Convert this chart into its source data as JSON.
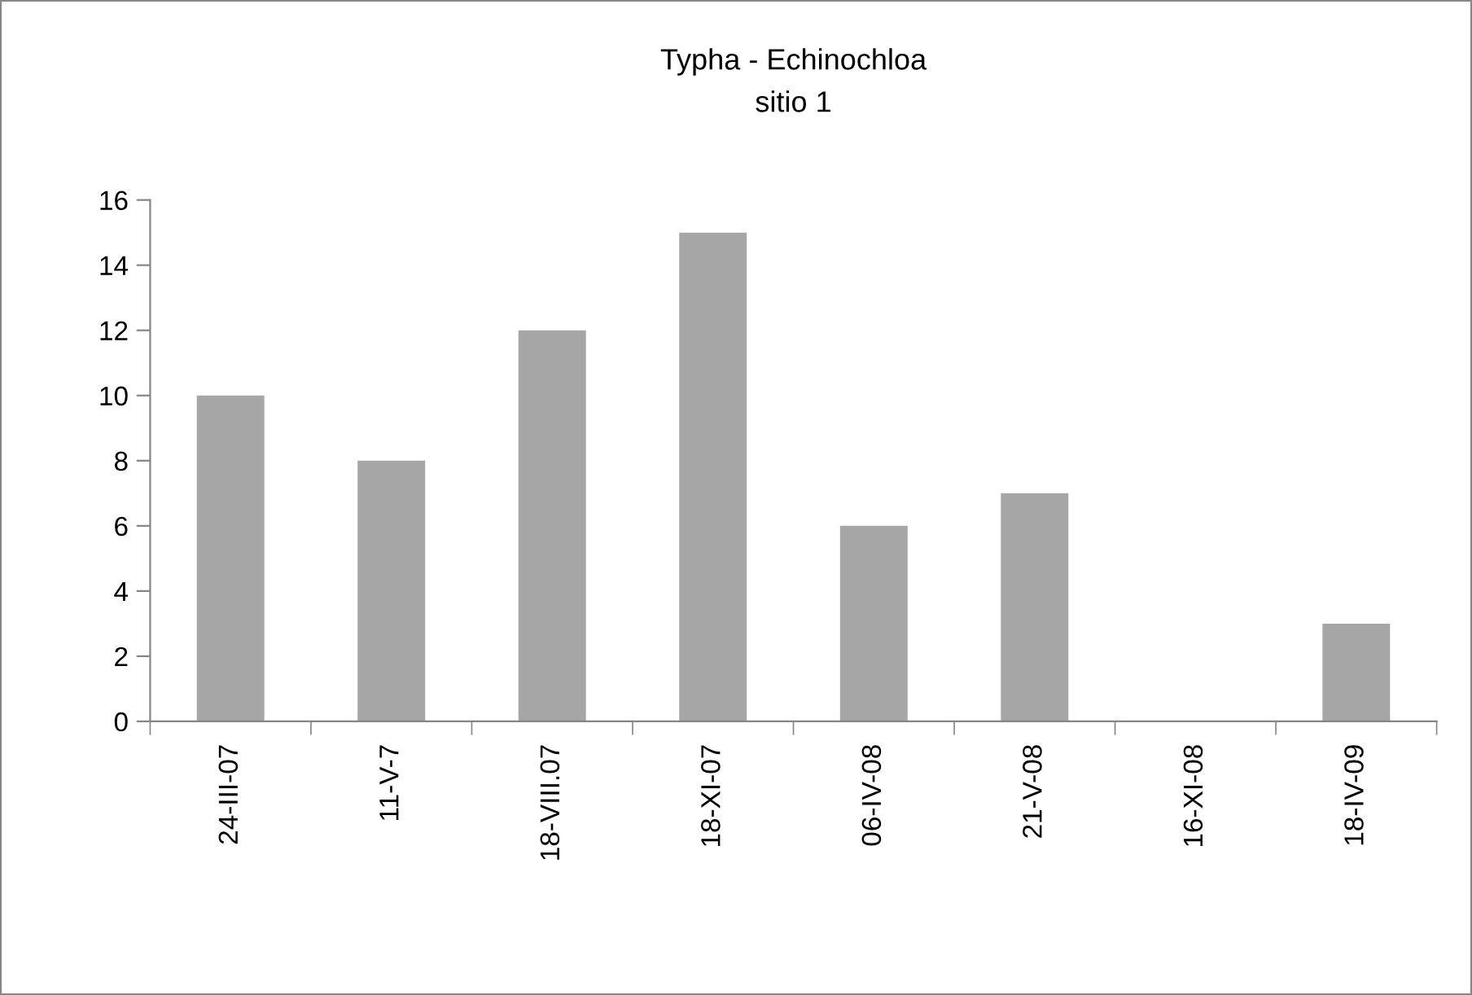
{
  "chart_data": {
    "type": "bar",
    "title": "Typha - Echinochloa",
    "subtitle": "sitio 1",
    "categories": [
      "24-III-07",
      "11-V-7",
      "18-VIII.07",
      "18-XI-07",
      "06-IV-08",
      "21-V-08",
      "16-XI-08",
      "18-IV-09"
    ],
    "values": [
      10,
      8,
      12,
      15,
      6,
      7,
      0,
      3
    ],
    "color": "#a6a6a6",
    "ylim": [
      0,
      16
    ],
    "yticks": [
      0,
      2,
      4,
      6,
      8,
      10,
      12,
      14,
      16
    ],
    "grid": false,
    "legend": false
  }
}
